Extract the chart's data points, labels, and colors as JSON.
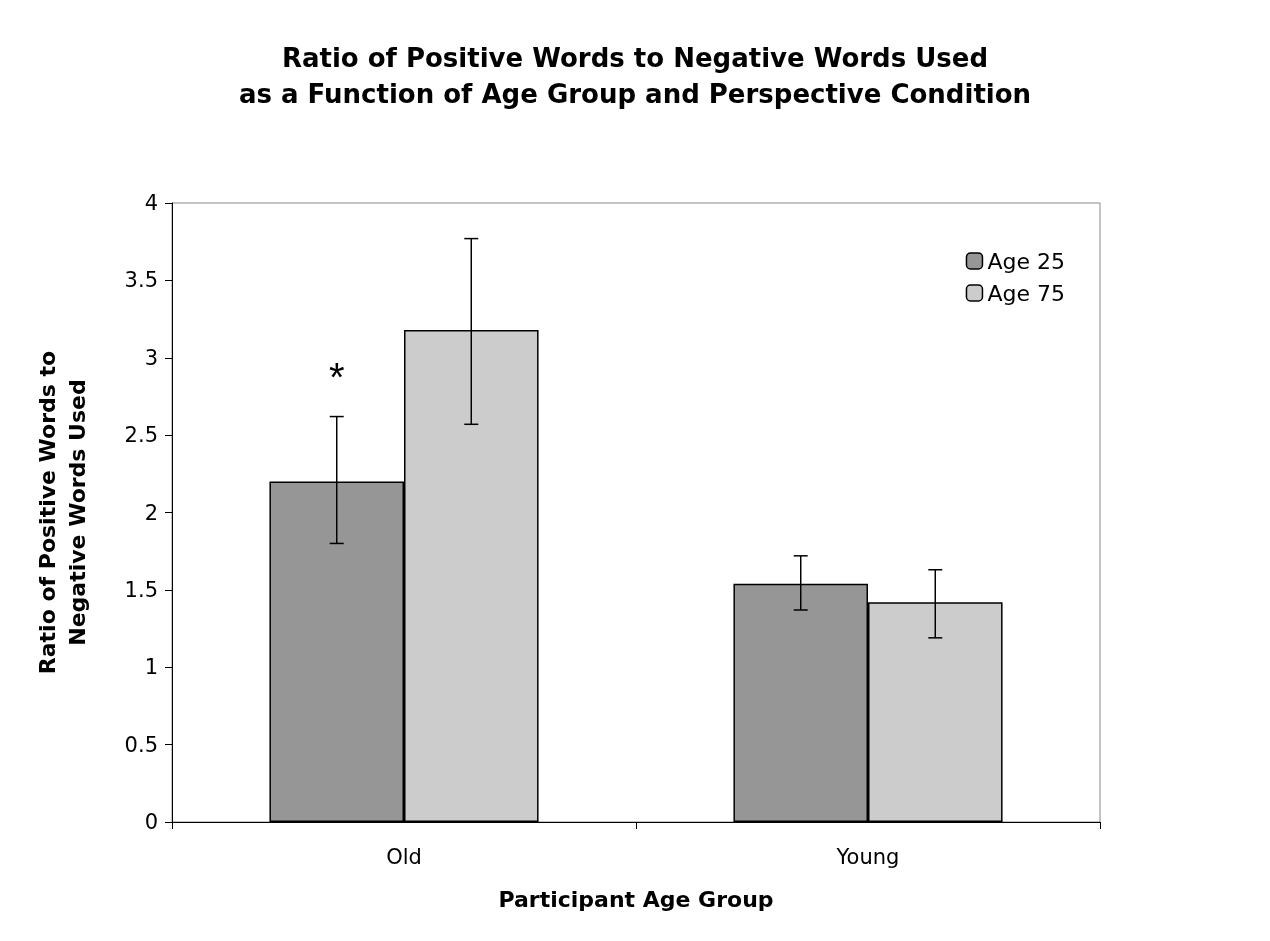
{
  "chart_data": {
    "type": "bar",
    "title": "Ratio of Positive Words to Negative Words Used\nas a Function of Age Group and Perspective Condition",
    "xlabel": "Participant Age Group",
    "ylabel": "Ratio of Positive Words to\nNegative Words Used",
    "categories": [
      "Old",
      "Young"
    ],
    "series": [
      {
        "name": "Age 25",
        "color": "#969696",
        "values": [
          2.2,
          1.54
        ],
        "errors": [
          [
            1.8,
            2.62
          ],
          [
            1.37,
            1.72
          ]
        ]
      },
      {
        "name": "Age 75",
        "color": "#cccccc",
        "values": [
          3.18,
          1.42
        ],
        "errors": [
          [
            2.57,
            3.77
          ],
          [
            1.19,
            1.63
          ]
        ]
      }
    ],
    "ylim": [
      0,
      4
    ],
    "yticks": [
      0,
      0.5,
      1,
      1.5,
      2,
      2.5,
      3,
      3.5,
      4
    ],
    "grid": false,
    "legend": "top right",
    "annotations": [
      "*"
    ]
  }
}
